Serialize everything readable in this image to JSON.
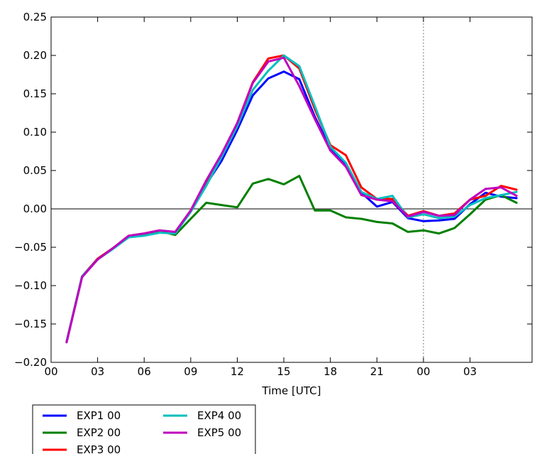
{
  "chart_data": {
    "type": "line",
    "title": "",
    "xlabel": "Time [UTC]",
    "ylabel": "",
    "x_tick_labels": [
      "00",
      "03",
      "06",
      "09",
      "12",
      "15",
      "18",
      "21",
      "00",
      "03"
    ],
    "x_tick_hours": [
      0,
      3,
      6,
      9,
      12,
      15,
      18,
      21,
      24,
      27
    ],
    "x_range_hours": [
      0,
      31
    ],
    "y_tick_labels": [
      "−0.20",
      "−0.15",
      "−0.10",
      "−0.05",
      "0.00",
      "0.05",
      "0.10",
      "0.15",
      "0.20",
      "0.25"
    ],
    "y_ticks": [
      -0.2,
      -0.15,
      -0.1,
      -0.05,
      0,
      0.05,
      0.1,
      0.15,
      0.2,
      0.25
    ],
    "ylim": [
      -0.2,
      0.25
    ],
    "reference_lines": {
      "horizontal_y": 0,
      "vertical_dotted_x_hour": 24
    },
    "grid": false,
    "legend": {
      "placement": "below",
      "columns": 2
    },
    "x_hours": [
      1,
      2,
      3,
      4,
      5,
      6,
      7,
      8,
      9,
      10,
      11,
      12,
      13,
      14,
      15,
      16,
      17,
      18,
      19,
      20,
      21,
      22,
      23,
      24,
      25,
      26,
      27,
      28,
      29,
      30
    ],
    "series": [
      {
        "name": "EXP1 00",
        "color": "#0000ff",
        "values": [
          -0.173,
          -0.088,
          -0.065,
          -0.051,
          -0.036,
          -0.033,
          -0.029,
          -0.031,
          -0.003,
          0.032,
          0.063,
          0.103,
          0.148,
          0.17,
          0.179,
          0.169,
          0.12,
          0.079,
          0.058,
          0.021,
          0.003,
          0.009,
          -0.012,
          -0.016,
          -0.015,
          -0.013,
          0.006,
          0.021,
          0.016,
          0.014
        ]
      },
      {
        "name": "EXP2 00",
        "color": "#008000",
        "values": [
          -0.173,
          -0.088,
          -0.065,
          -0.051,
          -0.036,
          -0.033,
          -0.029,
          -0.034,
          -0.013,
          0.008,
          0.005,
          0.002,
          0.033,
          0.039,
          0.032,
          0.043,
          -0.002,
          -0.002,
          -0.011,
          -0.013,
          -0.017,
          -0.019,
          -0.03,
          -0.028,
          -0.032,
          -0.025,
          -0.007,
          0.012,
          0.018,
          0.008
        ]
      },
      {
        "name": "EXP3 00",
        "color": "#ff0000",
        "values": [
          -0.173,
          -0.088,
          -0.065,
          -0.051,
          -0.035,
          -0.032,
          -0.028,
          -0.031,
          -0.002,
          0.036,
          0.07,
          0.112,
          0.165,
          0.196,
          0.2,
          0.183,
          0.13,
          0.083,
          0.07,
          0.028,
          0.013,
          0.013,
          -0.009,
          -0.003,
          -0.009,
          -0.006,
          0.012,
          0.017,
          0.03,
          0.025
        ]
      },
      {
        "name": "EXP4 00",
        "color": "#00bfbf",
        "values": [
          -0.173,
          -0.088,
          -0.066,
          -0.052,
          -0.037,
          -0.035,
          -0.031,
          -0.032,
          -0.004,
          0.03,
          0.068,
          0.108,
          0.155,
          0.18,
          0.2,
          0.186,
          0.134,
          0.081,
          0.06,
          0.022,
          0.013,
          0.017,
          -0.011,
          -0.007,
          -0.012,
          -0.01,
          0.005,
          0.014,
          0.018,
          0.022
        ]
      },
      {
        "name": "EXP5 00",
        "color": "#bf00bf",
        "values": [
          -0.174,
          -0.089,
          -0.066,
          -0.051,
          -0.035,
          -0.032,
          -0.028,
          -0.03,
          -0.002,
          0.037,
          0.072,
          0.112,
          0.164,
          0.192,
          0.197,
          0.16,
          0.117,
          0.076,
          0.055,
          0.018,
          0.012,
          0.01,
          -0.01,
          -0.004,
          -0.009,
          -0.008,
          0.012,
          0.026,
          0.028,
          0.017
        ]
      }
    ]
  }
}
